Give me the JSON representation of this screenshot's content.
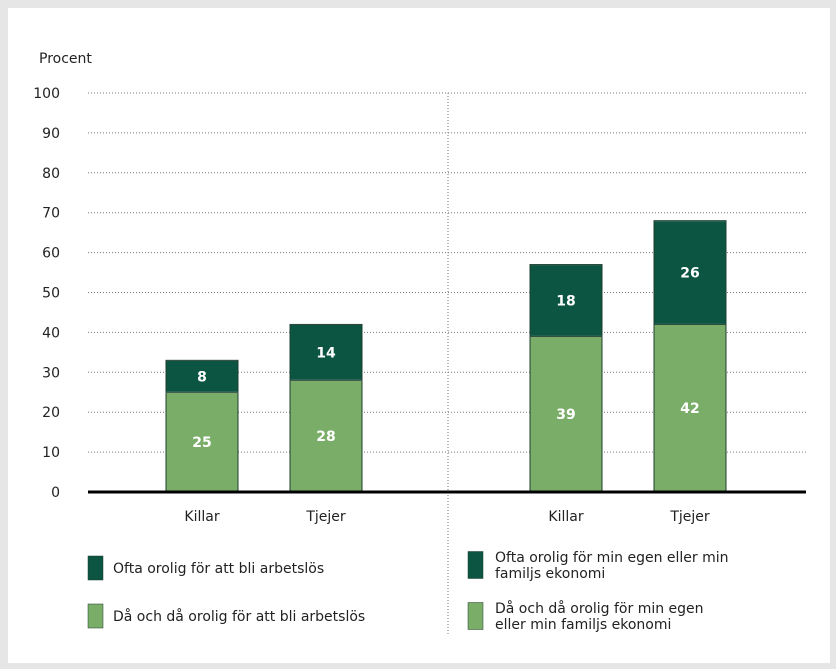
{
  "chart_data": {
    "type": "bar",
    "stacked": true,
    "ylabel": "Procent",
    "ylim": [
      0,
      100
    ],
    "yticks": [
      0,
      10,
      20,
      30,
      40,
      50,
      60,
      70,
      80,
      90,
      100
    ],
    "grid": true,
    "groups": [
      {
        "categories": [
          "Killar",
          "Tjejer"
        ],
        "series": [
          {
            "name": "Då och då orolig för att bli arbetslös",
            "color": "#7aad68",
            "values": [
              25,
              28
            ]
          },
          {
            "name": "Ofta orolig för att bli arbetslös",
            "color": "#0b5542",
            "values": [
              8,
              14
            ]
          }
        ]
      },
      {
        "categories": [
          "Killar",
          "Tjejer"
        ],
        "series": [
          {
            "name": "Då och då orolig för min egen eller min familjs ekonomi",
            "color": "#7aad68",
            "values": [
              39,
              42
            ]
          },
          {
            "name": "Ofta orolig för min egen eller min familjs ekonomi",
            "color": "#0b5542",
            "values": [
              18,
              26
            ]
          }
        ]
      }
    ]
  },
  "legend": {
    "left": [
      {
        "lines": [
          "Ofta orolig för att bli arbetslös"
        ],
        "color": "#0b5542"
      },
      {
        "lines": [
          "Då och då orolig för att bli arbetslös"
        ],
        "color": "#7aad68"
      }
    ],
    "right": [
      {
        "lines": [
          "Ofta orolig för min egen eller min",
          "familjs ekonomi"
        ],
        "color": "#0b5542"
      },
      {
        "lines": [
          "Då och då orolig för min egen",
          "eller min familjs ekonomi"
        ],
        "color": "#7aad68"
      }
    ]
  }
}
